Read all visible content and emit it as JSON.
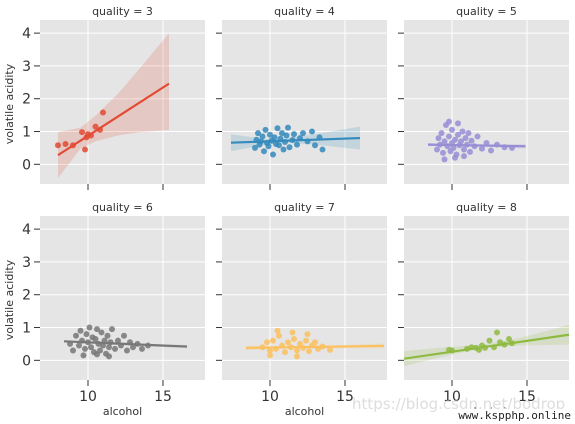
{
  "chart_data": {
    "type": "scatter",
    "title": "",
    "xlabel": "alcohol",
    "ylabel": "volatile acidity",
    "xlim": [
      6.8,
      17.8
    ],
    "ylim": [
      -0.6,
      4.4
    ],
    "xticks": [
      10,
      15
    ],
    "yticks": [
      0,
      1,
      2,
      3,
      4
    ],
    "grid": true,
    "legend": "none",
    "panels": [
      {
        "title": "quality = 3",
        "color": "#E24A33",
        "points": [
          [
            8.0,
            0.58
          ],
          [
            8.5,
            0.62
          ],
          [
            9.0,
            0.58
          ],
          [
            9.6,
            0.98
          ],
          [
            9.8,
            0.45
          ],
          [
            9.9,
            0.82
          ],
          [
            10.0,
            0.92
          ],
          [
            10.2,
            0.88
          ],
          [
            10.5,
            1.15
          ],
          [
            10.8,
            1.05
          ],
          [
            11.0,
            1.58
          ]
        ],
        "fit": {
          "x": [
            8.0,
            15.4
          ],
          "y": [
            0.28,
            2.46
          ]
        },
        "ci": {
          "x": [
            8.0,
            9.5,
            10.5,
            12.0,
            13.5,
            15.4
          ],
          "lower": [
            -0.42,
            0.48,
            0.7,
            0.88,
            0.98,
            1.05
          ],
          "upper": [
            0.98,
            1.12,
            1.48,
            2.15,
            2.95,
            4.0
          ]
        }
      },
      {
        "title": "quality = 4",
        "color": "#348ABD",
        "points": [
          [
            9.0,
            0.5
          ],
          [
            9.1,
            0.75
          ],
          [
            9.2,
            0.95
          ],
          [
            9.3,
            0.6
          ],
          [
            9.4,
            0.7
          ],
          [
            9.5,
            0.85
          ],
          [
            9.6,
            0.4
          ],
          [
            9.7,
            1.05
          ],
          [
            9.8,
            0.65
          ],
          [
            9.9,
            0.55
          ],
          [
            10.0,
            0.9
          ],
          [
            10.1,
            0.72
          ],
          [
            10.2,
            0.3
          ],
          [
            10.3,
            0.82
          ],
          [
            10.4,
            0.62
          ],
          [
            10.5,
            1.1
          ],
          [
            10.6,
            0.58
          ],
          [
            10.7,
            0.78
          ],
          [
            10.8,
            0.95
          ],
          [
            10.9,
            0.45
          ],
          [
            11.0,
            0.68
          ],
          [
            11.1,
            0.88
          ],
          [
            11.2,
            1.12
          ],
          [
            11.3,
            0.52
          ],
          [
            11.5,
            0.74
          ],
          [
            11.6,
            0.92
          ],
          [
            11.8,
            0.6
          ],
          [
            12.0,
            0.8
          ],
          [
            12.2,
            0.95
          ],
          [
            12.5,
            0.7
          ],
          [
            12.8,
            1.0
          ],
          [
            13.0,
            0.58
          ],
          [
            13.3,
            0.82
          ],
          [
            13.5,
            0.45
          ]
        ],
        "fit": {
          "x": [
            7.4,
            16.0
          ],
          "y": [
            0.66,
            0.8
          ]
        },
        "ci": {
          "x": [
            7.4,
            9.5,
            11.0,
            13.0,
            16.0
          ],
          "lower": [
            0.4,
            0.58,
            0.66,
            0.6,
            0.45
          ],
          "upper": [
            0.92,
            0.78,
            0.78,
            0.92,
            1.15
          ]
        }
      },
      {
        "title": "quality = 5",
        "color": "#988ED5",
        "points": [
          [
            9.0,
            0.45
          ],
          [
            9.1,
            0.8
          ],
          [
            9.2,
            0.6
          ],
          [
            9.3,
            0.95
          ],
          [
            9.4,
            0.35
          ],
          [
            9.5,
            0.7
          ],
          [
            9.6,
            1.2
          ],
          [
            9.7,
            0.55
          ],
          [
            9.8,
            0.85
          ],
          [
            9.9,
            0.4
          ],
          [
            10.0,
            0.65
          ],
          [
            10.0,
            1.05
          ],
          [
            10.1,
            0.5
          ],
          [
            10.2,
            0.75
          ],
          [
            10.3,
            0.3
          ],
          [
            10.4,
            0.9
          ],
          [
            10.5,
            0.58
          ],
          [
            10.6,
            0.7
          ],
          [
            10.7,
            1.0
          ],
          [
            10.8,
            0.45
          ],
          [
            10.9,
            0.8
          ],
          [
            11.0,
            0.6
          ],
          [
            11.1,
            0.95
          ],
          [
            11.2,
            0.38
          ],
          [
            11.3,
            0.72
          ],
          [
            11.5,
            0.55
          ],
          [
            11.7,
            0.85
          ],
          [
            12.0,
            0.48
          ],
          [
            12.3,
            0.65
          ],
          [
            12.6,
            0.42
          ],
          [
            13.0,
            0.6
          ],
          [
            13.5,
            0.52
          ],
          [
            14.0,
            0.5
          ],
          [
            9.5,
            0.15
          ],
          [
            10.2,
            0.2
          ],
          [
            10.8,
            0.25
          ],
          [
            9.8,
            1.3
          ],
          [
            10.4,
            1.25
          ]
        ],
        "fit": {
          "x": [
            8.4,
            14.9
          ],
          "y": [
            0.6,
            0.55
          ]
        },
        "ci": {
          "x": [
            8.4,
            10.5,
            14.9
          ],
          "lower": [
            0.55,
            0.57,
            0.48
          ],
          "upper": [
            0.65,
            0.61,
            0.62
          ]
        }
      },
      {
        "title": "quality = 6",
        "color": "#777777",
        "points": [
          [
            8.8,
            0.5
          ],
          [
            9.0,
            0.3
          ],
          [
            9.2,
            0.75
          ],
          [
            9.4,
            0.45
          ],
          [
            9.5,
            0.9
          ],
          [
            9.6,
            0.6
          ],
          [
            9.8,
            0.35
          ],
          [
            9.9,
            0.8
          ],
          [
            10.0,
            0.55
          ],
          [
            10.1,
            1.0
          ],
          [
            10.2,
            0.4
          ],
          [
            10.3,
            0.7
          ],
          [
            10.4,
            0.25
          ],
          [
            10.5,
            0.65
          ],
          [
            10.6,
            0.95
          ],
          [
            10.7,
            0.5
          ],
          [
            10.8,
            0.3
          ],
          [
            10.9,
            0.85
          ],
          [
            11.0,
            0.45
          ],
          [
            11.1,
            0.6
          ],
          [
            11.2,
            0.2
          ],
          [
            11.3,
            0.75
          ],
          [
            11.4,
            0.4
          ],
          [
            11.5,
            0.55
          ],
          [
            11.6,
            0.95
          ],
          [
            11.8,
            0.35
          ],
          [
            12.0,
            0.6
          ],
          [
            12.2,
            0.45
          ],
          [
            12.4,
            0.75
          ],
          [
            12.6,
            0.3
          ],
          [
            12.8,
            0.55
          ],
          [
            13.0,
            0.4
          ],
          [
            13.3,
            0.5
          ],
          [
            13.6,
            0.35
          ],
          [
            14.0,
            0.45
          ],
          [
            9.7,
            0.15
          ],
          [
            10.6,
            0.18
          ],
          [
            11.4,
            0.12
          ]
        ],
        "fit": {
          "x": [
            8.4,
            16.6
          ],
          "y": [
            0.58,
            0.42
          ]
        },
        "ci": {
          "x": [
            8.4,
            11.0,
            16.6
          ],
          "lower": [
            0.55,
            0.48,
            0.37
          ],
          "upper": [
            0.61,
            0.52,
            0.47
          ]
        }
      },
      {
        "title": "quality = 7",
        "color": "#FBC15E",
        "points": [
          [
            9.5,
            0.4
          ],
          [
            9.8,
            0.55
          ],
          [
            10.0,
            0.3
          ],
          [
            10.2,
            0.6
          ],
          [
            10.4,
            0.35
          ],
          [
            10.6,
            0.75
          ],
          [
            10.8,
            0.45
          ],
          [
            11.0,
            0.25
          ],
          [
            11.2,
            0.55
          ],
          [
            11.4,
            0.4
          ],
          [
            11.6,
            0.65
          ],
          [
            11.8,
            0.3
          ],
          [
            12.0,
            0.5
          ],
          [
            12.2,
            0.38
          ],
          [
            12.4,
            0.6
          ],
          [
            12.6,
            0.28
          ],
          [
            12.8,
            0.45
          ],
          [
            13.0,
            0.55
          ],
          [
            13.2,
            0.35
          ],
          [
            13.5,
            0.42
          ],
          [
            14.0,
            0.32
          ],
          [
            10.5,
            0.9
          ],
          [
            11.5,
            0.85
          ],
          [
            12.5,
            0.8
          ],
          [
            10.0,
            0.15
          ],
          [
            11.8,
            0.12
          ]
        ],
        "fit": {
          "x": [
            8.4,
            17.6
          ],
          "y": [
            0.38,
            0.44
          ]
        },
        "ci": {
          "x": [
            8.4,
            12.0,
            17.6
          ],
          "lower": [
            0.31,
            0.37,
            0.36
          ],
          "upper": [
            0.45,
            0.41,
            0.52
          ]
        }
      },
      {
        "title": "quality = 8",
        "color": "#8EBA42",
        "points": [
          [
            9.8,
            0.32
          ],
          [
            10.0,
            0.3
          ],
          [
            11.0,
            0.35
          ],
          [
            11.3,
            0.4
          ],
          [
            11.6,
            0.38
          ],
          [
            11.8,
            0.32
          ],
          [
            12.0,
            0.45
          ],
          [
            12.2,
            0.38
          ],
          [
            12.5,
            0.6
          ],
          [
            12.8,
            0.4
          ],
          [
            13.0,
            0.85
          ],
          [
            13.2,
            0.55
          ],
          [
            13.5,
            0.48
          ],
          [
            13.8,
            0.65
          ],
          [
            14.0,
            0.52
          ]
        ],
        "fit": {
          "x": [
            6.8,
            17.8
          ],
          "y": [
            0.05,
            0.78
          ]
        },
        "ci": {
          "x": [
            6.8,
            9.5,
            12.0,
            14.5,
            17.8
          ],
          "lower": [
            -0.18,
            0.12,
            0.38,
            0.45,
            0.48
          ],
          "upper": [
            0.28,
            0.4,
            0.48,
            0.68,
            1.08
          ]
        }
      }
    ]
  },
  "watermark": "https://blog.csdn.net/bodrop",
  "brand": "www.kspphp.online"
}
